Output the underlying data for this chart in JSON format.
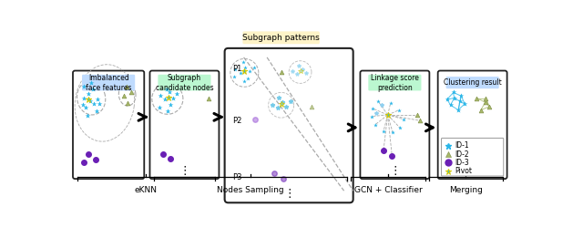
{
  "title": "Subgraph patterns",
  "title_bg": "#fef3c7",
  "box1_label": "Imbalanced\nface features",
  "box1_label_bg": "#bfdbfe",
  "box2_label": "Subgraph\ncandidate nodes",
  "box2_label_bg": "#bbf7d0",
  "box3_label": "Linkage score\nprediction",
  "box3_label_bg": "#bbf7d0",
  "box4_label": "Clustering result",
  "box4_label_bg": "#bfdbfe",
  "label_eKNN": "eKNN",
  "label_nodes": "Nodes Sampling",
  "label_gcn": "GCN + Classifier",
  "label_merging": "Merging",
  "colors": {
    "blue_node": "#29b6e8",
    "green_node": "#a8b86a",
    "purple_node": "#6a1fb5",
    "pivot_outline": "#d4c800",
    "box_border": "#222222",
    "dashed_line": "#aaaaaa",
    "bg_white": "#ffffff"
  }
}
